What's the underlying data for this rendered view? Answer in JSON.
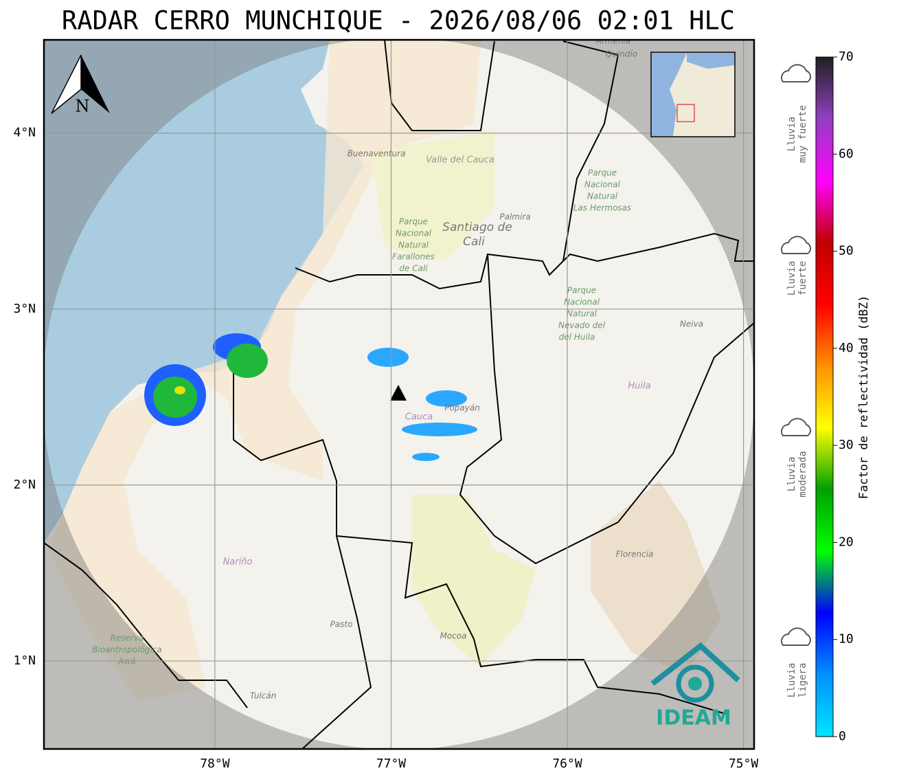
{
  "title": "RADAR CERRO MUNCHIQUE - 2026/08/06 02:01 HLC",
  "map": {
    "xlim": [
      -78.97,
      -74.94
    ],
    "ylim": [
      0.5,
      4.53
    ],
    "xticks": [
      {
        "value": -78,
        "label": "78°W"
      },
      {
        "value": -77,
        "label": "77°W"
      },
      {
        "value": -76,
        "label": "76°W"
      },
      {
        "value": -75,
        "label": "75°W"
      }
    ],
    "yticks": [
      {
        "value": 1,
        "label": "1°N"
      },
      {
        "value": 2,
        "label": "2°N"
      },
      {
        "value": 3,
        "label": "3°N"
      },
      {
        "value": 4,
        "label": "4°N"
      }
    ],
    "grid": true,
    "north_label": "N",
    "places": [
      "Buenaventura",
      "Valle del Cauca",
      "Palmira",
      "Santiago de",
      "Cali",
      "Parque",
      "Nacional",
      "Natural",
      "Las Hermosas",
      "Parque",
      "Nacional",
      "Natural",
      "Farallones",
      "de Cali",
      "Parque",
      "Nacional",
      "Natural",
      "Nevado del",
      "del Huila",
      "Neiva",
      "Huila",
      "Cauca",
      "Popayán",
      "Nariño",
      "Pasto",
      "Mocoa",
      "Florencia",
      "Reserva",
      "Bioantropológica",
      "Awá",
      "Tulcán",
      "Armenia",
      "Quindío"
    ],
    "logo": "IDEAM"
  },
  "colorbar": {
    "label": "Factor de reflectividad (dBZ)",
    "lim": [
      0,
      70
    ],
    "ticks": [
      0,
      10,
      20,
      30,
      40,
      50,
      60,
      70
    ],
    "colors": [
      "#00e5ff",
      "#0090ff",
      "#0000ff",
      "#00ff00",
      "#00a000",
      "#ffff00",
      "#ff9000",
      "#ff0000",
      "#c00000",
      "#ff00ff",
      "#9040c0",
      "#202020"
    ]
  },
  "legend": [
    {
      "lines": [
        "Lluvia",
        "muy fuerte"
      ]
    },
    {
      "lines": [
        "Lluvia",
        "fuerte"
      ]
    },
    {
      "lines": [
        "Lluvia",
        "moderada"
      ]
    },
    {
      "lines": [
        "Lluvia",
        "ligera"
      ]
    }
  ]
}
